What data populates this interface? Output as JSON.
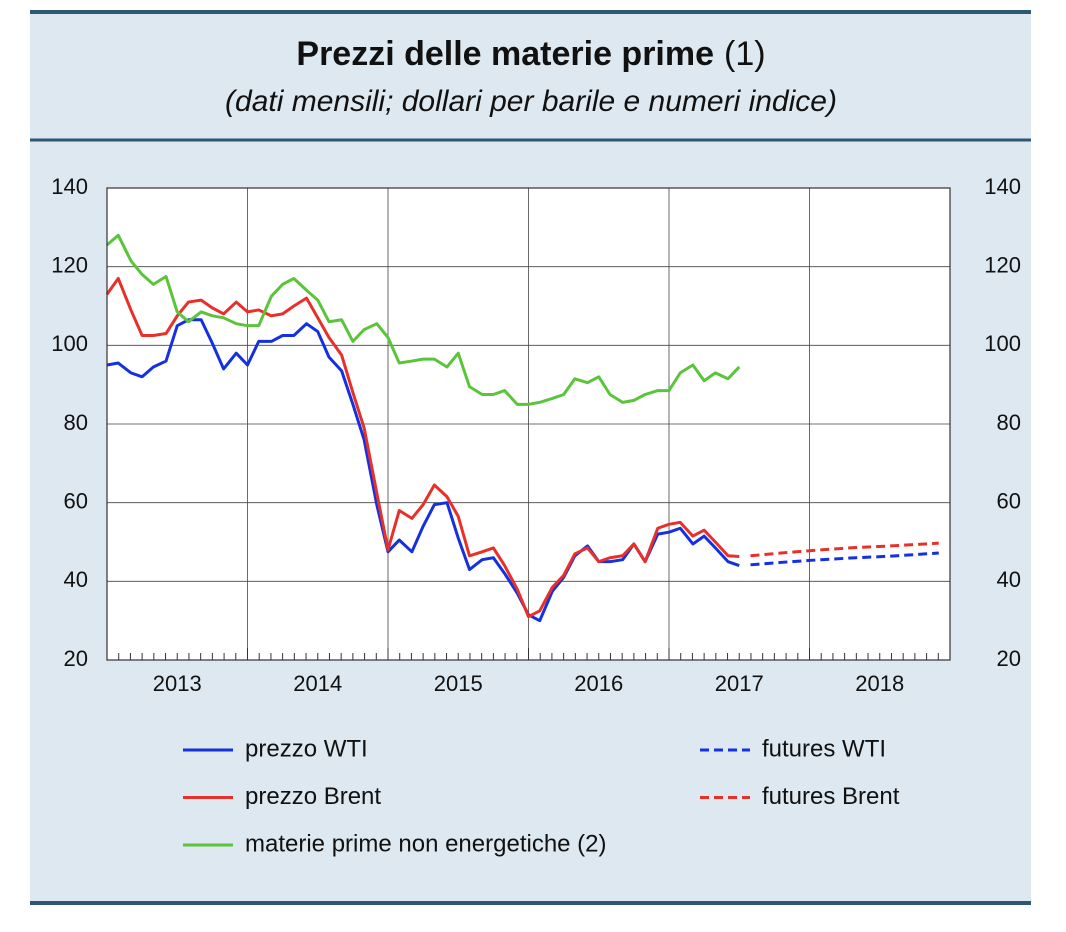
{
  "chart_data": {
    "type": "line",
    "title": "Prezzi delle materie prime",
    "title_note": "(1)",
    "subtitle": "(dati mensili; dollari per barile e numeri indice)",
    "xlim": [
      2013,
      2019
    ],
    "xticks": [
      {
        "value": 2013.5,
        "label": "2013"
      },
      {
        "value": 2014.5,
        "label": "2014"
      },
      {
        "value": 2015.5,
        "label": "2015"
      },
      {
        "value": 2016.5,
        "label": "2016"
      },
      {
        "value": 2017.5,
        "label": "2017"
      },
      {
        "value": 2018.5,
        "label": "2018"
      }
    ],
    "xgrid": [
      2014,
      2015,
      2016,
      2017,
      2018
    ],
    "ylim": [
      20,
      140
    ],
    "yticks": [
      20,
      40,
      60,
      80,
      100,
      120,
      140
    ],
    "y2lim": [
      20,
      140
    ],
    "y2ticks": [
      20,
      40,
      60,
      80,
      100,
      120,
      140
    ],
    "grid": true,
    "x": [
      2013,
      2013.08,
      2013.17,
      2013.25,
      2013.33,
      2013.42,
      2013.5,
      2013.58,
      2013.67,
      2013.75,
      2013.83,
      2013.92,
      2014,
      2014.08,
      2014.17,
      2014.25,
      2014.33,
      2014.42,
      2014.5,
      2014.58,
      2014.67,
      2014.75,
      2014.83,
      2014.92,
      2015,
      2015.08,
      2015.17,
      2015.25,
      2015.33,
      2015.42,
      2015.5,
      2015.58,
      2015.67,
      2015.75,
      2015.83,
      2015.92,
      2016,
      2016.08,
      2016.17,
      2016.25,
      2016.33,
      2016.42,
      2016.5,
      2016.58,
      2016.67,
      2016.75,
      2016.83,
      2016.92,
      2017,
      2017.08,
      2017.17,
      2017.25,
      2017.33,
      2017.42,
      2017.5
    ],
    "series": [
      {
        "name": "prezzo WTI",
        "color": "#1530e0",
        "dashed": false,
        "values": [
          95,
          95.5,
          93,
          92,
          94.5,
          96,
          105,
          106.5,
          106.5,
          100.5,
          94,
          98,
          95,
          101,
          101,
          102.5,
          102.5,
          105.5,
          103.5,
          97,
          93.5,
          85,
          76,
          59.5,
          47.5,
          50.5,
          47.5,
          54,
          59.5,
          60,
          51,
          43,
          45.5,
          46,
          42,
          37,
          31.5,
          30,
          37.5,
          41,
          46.5,
          49,
          45,
          45,
          45.5,
          49.5,
          45,
          52,
          52.5,
          53.5,
          49.5,
          51.5,
          48.5,
          45,
          44
        ]
      },
      {
        "name": "prezzo Brent",
        "color": "#e8302a",
        "dashed": false,
        "values": [
          113,
          117,
          109,
          102.5,
          102.5,
          103,
          107.5,
          111,
          111.5,
          109.5,
          108,
          111,
          108.5,
          109,
          107.5,
          108,
          110,
          112,
          107,
          102,
          97.5,
          88,
          79,
          62.5,
          48,
          58,
          56,
          59.5,
          64.5,
          61.5,
          56.5,
          46.5,
          47.5,
          48.5,
          44,
          38,
          31,
          32.5,
          38.5,
          41.5,
          47,
          48.5,
          45,
          46,
          46.5,
          49.5,
          45,
          53.5,
          54.5,
          55,
          51.5,
          53,
          50,
          46.5,
          46.3
        ]
      },
      {
        "name": "materie prime non energetiche (2)",
        "color": "#5cc43a",
        "dashed": false,
        "values": [
          125.5,
          128,
          121.5,
          118,
          115.5,
          117.5,
          108.5,
          106,
          108.5,
          107.5,
          107,
          105.5,
          105,
          105,
          112.5,
          115.5,
          117,
          114,
          111.5,
          106,
          106.5,
          101,
          104,
          105.5,
          102,
          95.5,
          96,
          96.5,
          96.5,
          94.5,
          98,
          89.5,
          87.5,
          87.5,
          88.5,
          85,
          85,
          85.5,
          86.5,
          87.5,
          91.5,
          90.5,
          92,
          87.5,
          85.5,
          86,
          87.5,
          88.5,
          88.5,
          93,
          95,
          91,
          93,
          91.5,
          94.5
        ]
      },
      {
        "name": "futures WTI",
        "color": "#1530e0",
        "dashed": true,
        "x": [
          2017.58,
          2017.83,
          2018.08,
          2018.33,
          2018.58,
          2018.92
        ],
        "values": [
          44.2,
          44.9,
          45.5,
          46.0,
          46.4,
          47.2
        ]
      },
      {
        "name": "futures Brent",
        "color": "#e8302a",
        "dashed": true,
        "x": [
          2017.58,
          2017.83,
          2018.08,
          2018.33,
          2018.58,
          2018.92
        ],
        "values": [
          46.5,
          47.3,
          48.0,
          48.6,
          49.0,
          49.7
        ]
      }
    ]
  }
}
